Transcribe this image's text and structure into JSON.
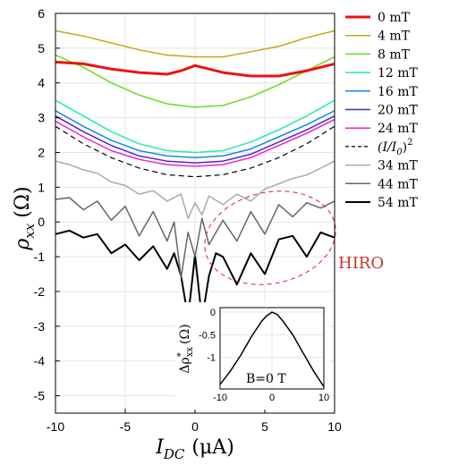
{
  "chart_data": {
    "type": "line",
    "xlabel": "I_DC (μA)",
    "xlabel_main": "I",
    "xlabel_sub": "DC",
    "xlabel_unit": "(μA)",
    "ylabel": "ρ_xx (Ω)",
    "ylabel_main": "ρ",
    "ylabel_sub": "xx",
    "ylabel_unit": "(Ω)",
    "xlim": [
      -10,
      10
    ],
    "ylim": [
      -5.5,
      6
    ],
    "xticks": [
      -10,
      -5,
      0,
      5,
      10
    ],
    "yticks": [
      6,
      5,
      4,
      3,
      2,
      1,
      0,
      -1,
      -2,
      -3,
      -4,
      -5
    ],
    "grid": true,
    "legend_position": "right",
    "series": [
      {
        "name": "0 mT",
        "color": "#ee1111",
        "width": 3,
        "dash": "",
        "x": [
          -10,
          -8,
          -6,
          -4,
          -2,
          -1,
          0,
          1,
          2,
          4,
          6,
          8,
          10
        ],
        "y": [
          4.6,
          4.55,
          4.4,
          4.3,
          4.25,
          4.35,
          4.5,
          4.4,
          4.3,
          4.2,
          4.2,
          4.35,
          4.55
        ]
      },
      {
        "name": "4 mT",
        "color": "#c8a415",
        "width": 1.5,
        "dash": "",
        "x": [
          -10,
          -8,
          -6,
          -4,
          -2,
          0,
          2,
          4,
          6,
          8,
          10
        ],
        "y": [
          5.5,
          5.35,
          5.15,
          4.95,
          4.8,
          4.75,
          4.75,
          4.9,
          5.05,
          5.3,
          5.5
        ]
      },
      {
        "name": "8 mT",
        "color": "#66dd22",
        "width": 1.5,
        "dash": "",
        "x": [
          -10,
          -8,
          -6,
          -4,
          -2,
          0,
          2,
          4,
          6,
          8,
          10
        ],
        "y": [
          4.8,
          4.45,
          4.0,
          3.65,
          3.4,
          3.3,
          3.35,
          3.6,
          3.95,
          4.35,
          4.75
        ]
      },
      {
        "name": "12 mT",
        "color": "#22eeaa",
        "width": 1.5,
        "dash": "",
        "x": [
          -10,
          -8,
          -6,
          -4,
          -2,
          0,
          2,
          4,
          6,
          8,
          10
        ],
        "y": [
          3.5,
          3.05,
          2.6,
          2.25,
          2.05,
          2.0,
          2.05,
          2.3,
          2.65,
          3.05,
          3.5
        ]
      },
      {
        "name": "16 mT",
        "color": "#1188ee",
        "width": 1.5,
        "dash": "",
        "x": [
          -10,
          -8,
          -6,
          -4,
          -2,
          0,
          2,
          4,
          6,
          8,
          10
        ],
        "y": [
          3.2,
          2.75,
          2.35,
          2.05,
          1.9,
          1.85,
          1.9,
          2.1,
          2.45,
          2.8,
          3.2
        ]
      },
      {
        "name": "20 mT",
        "color": "#5522cc",
        "width": 1.5,
        "dash": "",
        "x": [
          -10,
          -8,
          -6,
          -4,
          -2,
          0,
          2,
          4,
          6,
          8,
          10
        ],
        "y": [
          3.05,
          2.6,
          2.2,
          1.9,
          1.75,
          1.7,
          1.75,
          1.95,
          2.3,
          2.65,
          3.05
        ]
      },
      {
        "name": "24 mT",
        "color": "#ee22cc",
        "width": 1.5,
        "dash": "",
        "x": [
          -10,
          -8,
          -6,
          -4,
          -2,
          0,
          2,
          4,
          6,
          8,
          10
        ],
        "y": [
          2.9,
          2.45,
          2.05,
          1.8,
          1.65,
          1.6,
          1.65,
          1.85,
          2.2,
          2.55,
          2.95
        ]
      },
      {
        "name": "(I/I0)^2",
        "label_main": "(I/I",
        "label_sub": "0",
        "label_tail": ")",
        "label_sup": "2",
        "color": "#000000",
        "width": 1.2,
        "dash": "6,4",
        "x": [
          -10,
          -8,
          -6,
          -4,
          -2,
          0,
          2,
          4,
          6,
          8,
          10
        ],
        "y": [
          2.75,
          2.25,
          1.85,
          1.55,
          1.36,
          1.3,
          1.36,
          1.55,
          1.85,
          2.25,
          2.75
        ]
      },
      {
        "name": "34 mT",
        "color": "#aaaaaa",
        "width": 1.5,
        "dash": "",
        "x": [
          -10,
          -9,
          -8,
          -7,
          -6,
          -5,
          -4,
          -3,
          -2,
          -1,
          -0.5,
          0,
          0.5,
          1,
          2,
          3,
          4,
          5,
          6,
          7,
          8,
          9,
          10
        ],
        "y": [
          1.75,
          1.65,
          1.5,
          1.4,
          1.15,
          1.05,
          0.8,
          0.9,
          0.6,
          0.8,
          0.1,
          0.55,
          0.2,
          0.75,
          0.5,
          0.8,
          0.6,
          0.95,
          1.1,
          1.25,
          1.35,
          1.55,
          1.75
        ]
      },
      {
        "name": "44 mT",
        "color": "#666666",
        "width": 1.5,
        "dash": "",
        "x": [
          -10,
          -9,
          -8,
          -7,
          -6,
          -5,
          -4,
          -3,
          -2,
          -1.5,
          -1,
          -0.5,
          0,
          0.5,
          1,
          2,
          3,
          4,
          5,
          6,
          7,
          8,
          9,
          10
        ],
        "y": [
          0.65,
          0.7,
          0.35,
          0.6,
          0.05,
          0.45,
          -0.4,
          0.3,
          -0.55,
          0.0,
          -1.6,
          -0.3,
          -1.0,
          0.1,
          -0.65,
          0.05,
          -0.55,
          0.3,
          -0.35,
          0.5,
          0.15,
          0.55,
          0.4,
          0.6
        ]
      },
      {
        "name": "54 mT",
        "color": "#000000",
        "width": 2,
        "dash": "",
        "x": [
          -10,
          -9,
          -8,
          -7,
          -6,
          -5,
          -4,
          -3,
          -2,
          -1.5,
          -1,
          -0.5,
          0,
          0.5,
          1,
          1.5,
          2,
          3,
          4,
          5,
          6,
          7,
          8,
          9,
          10
        ],
        "y": [
          -0.35,
          -0.25,
          -0.45,
          -0.35,
          -0.9,
          -0.65,
          -1.1,
          -0.7,
          -1.35,
          -0.9,
          -1.55,
          -2.75,
          -0.95,
          -2.8,
          -1.55,
          -0.9,
          -1.0,
          -1.8,
          -0.9,
          -1.5,
          -0.5,
          -0.4,
          -1.0,
          -0.3,
          -0.45
        ]
      }
    ],
    "annotation": {
      "text": "HIRO",
      "color": "#c0392b"
    },
    "inset": {
      "type": "line",
      "ylabel": "Δρ*_xx (Ω)",
      "ylabel_delta": "Δρ",
      "ylabel_sup": "*",
      "ylabel_sub": "xx",
      "ylabel_unit": "(Ω)",
      "text": "B=0 T",
      "xlim": [
        -10,
        10
      ],
      "ylim": [
        -1.7,
        0.1
      ],
      "xticks": [
        -10,
        0,
        10
      ],
      "yticks": [
        0,
        -0.5,
        -1
      ],
      "x": [
        -10,
        -8,
        -6,
        -4,
        -2,
        -1,
        0,
        1,
        2,
        4,
        6,
        8,
        10
      ],
      "y": [
        -1.6,
        -1.3,
        -0.95,
        -0.55,
        -0.2,
        -0.08,
        0.0,
        -0.05,
        -0.18,
        -0.5,
        -0.9,
        -1.3,
        -1.65
      ]
    }
  }
}
